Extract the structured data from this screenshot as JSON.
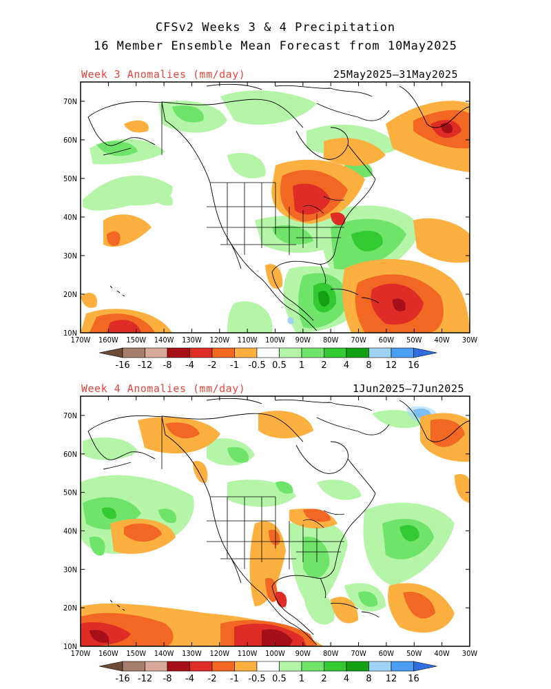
{
  "title_line1": "CFSv2 Weeks 3 & 4 Precipitation",
  "title_line2": "16 Member Ensemble Mean Forecast from 10May2025",
  "panels": [
    {
      "label": "Week 3 Anomalies (mm/day)",
      "dates": "25May2025–31May2025"
    },
    {
      "label": "Week 4 Anomalies (mm/day)",
      "dates": "1Jun2025–7Jun2025"
    }
  ],
  "lat_labels": [
    "70N",
    "60N",
    "50N",
    "40N",
    "30N",
    "20N",
    "10N"
  ],
  "lon_labels": [
    "170W",
    "160W",
    "150W",
    "140W",
    "130W",
    "120W",
    "110W",
    "100W",
    "90W",
    "80W",
    "70W",
    "60W",
    "50W",
    "40W",
    "30W"
  ],
  "colorbar": {
    "labels": [
      "-16",
      "-12",
      "-8",
      "-4",
      "-2",
      "-1",
      "-0.5",
      "0.5",
      "1",
      "2",
      "4",
      "8",
      "12",
      "16"
    ],
    "colors": [
      "#6b4c3b",
      "#a67e6e",
      "#d8a89a",
      "#a50f15",
      "#de2d26",
      "#f26722",
      "#fbb040",
      "#ffffff",
      "#b5f5a8",
      "#6fe36a",
      "#33c933",
      "#14a014",
      "#9fd4f7",
      "#4a9df0",
      "#2f6ee0"
    ]
  },
  "colors": {
    "wet_light": "#b5f5a8",
    "wet_mid": "#6fe36a",
    "wet_strong": "#33c933",
    "wet_dark": "#14a014",
    "dry_light": "#fbb040",
    "dry_mid": "#f26722",
    "dry_strong": "#de2d26",
    "dry_dark": "#a50f15"
  }
}
